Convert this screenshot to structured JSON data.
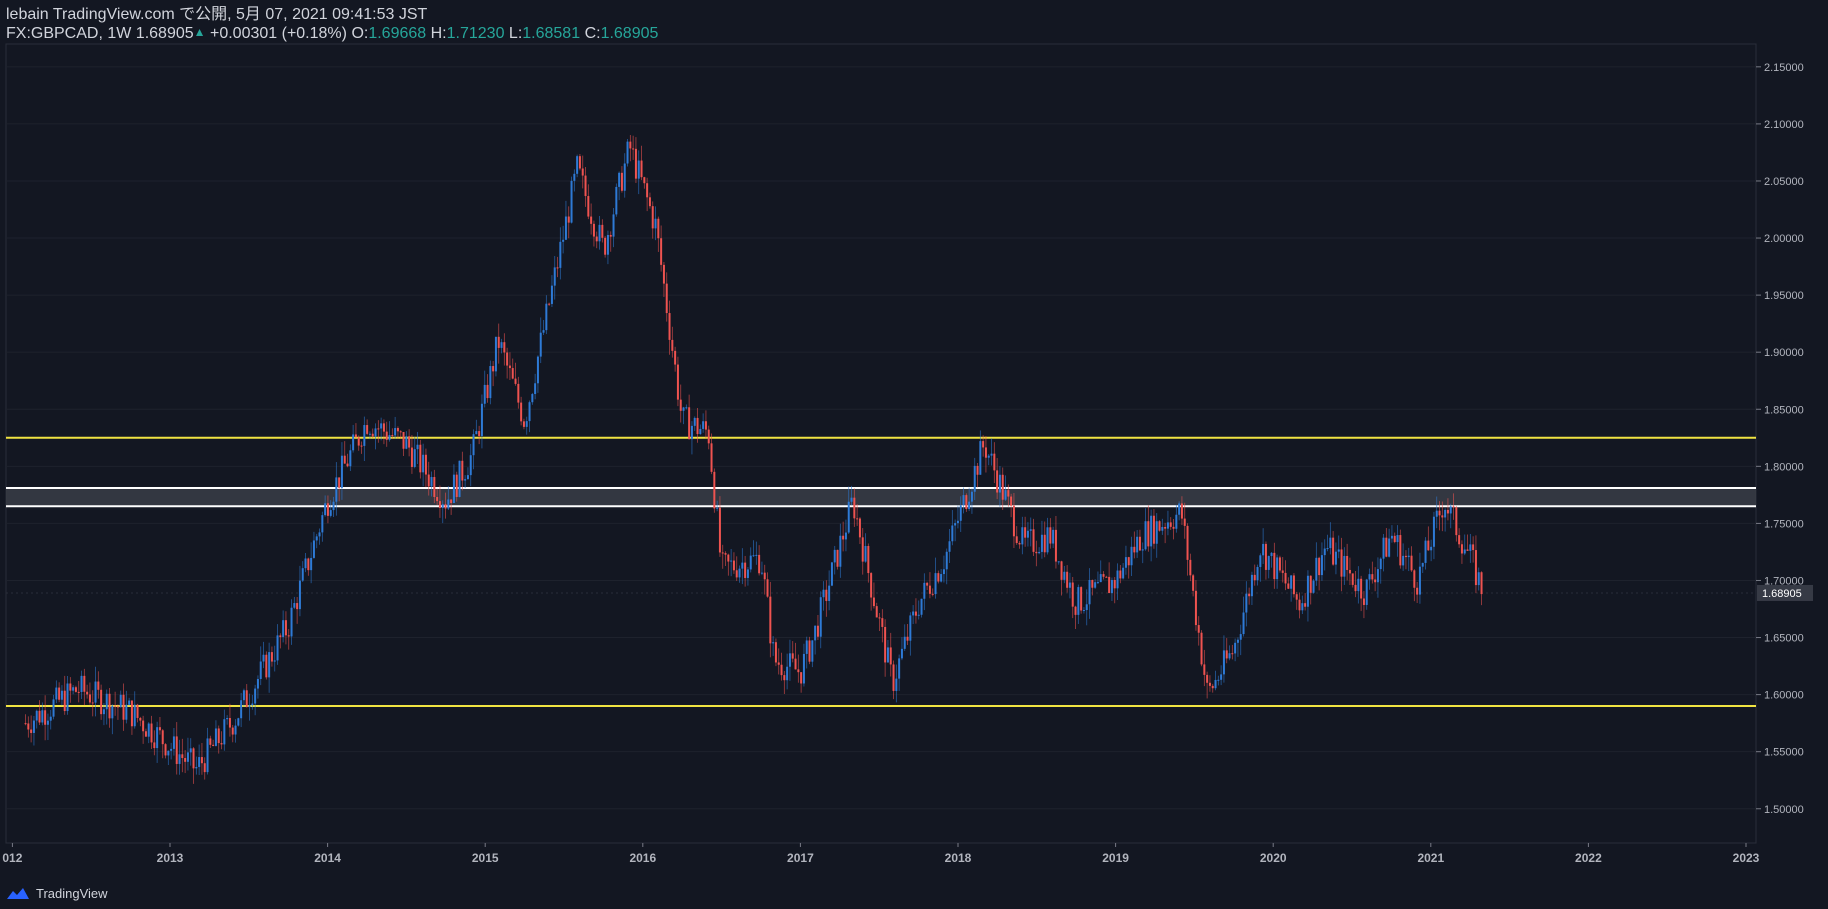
{
  "header": {
    "publisher_line": "lebain TradingView.com で公開, 5月 07, 2021 09:41:53 JST",
    "symbol": "FX:GBPCAD, 1W 1.68905",
    "change": "+0.00301 (+0.18%)",
    "o_label": "O:",
    "o_value": "1.69668",
    "h_label": "H:",
    "h_value": "1.71230",
    "l_label": "L:",
    "l_value": "1.68581",
    "c_label": "C:",
    "c_value": "1.68905"
  },
  "footer": {
    "brand": "TradingView"
  },
  "colors": {
    "background": "#131722",
    "up": "#2e7ad6",
    "down": "#ef5350",
    "support_resistance": "#f0e442",
    "zone_border": "#ffffff",
    "zone_fill": "#3a3d46",
    "axis_text": "#b2b5be",
    "grid": "#1e222d"
  },
  "chart_data": {
    "type": "line",
    "series": [
      {
        "name": "",
        "x": [
          "2012-02",
          "2012-06",
          "2012-10",
          "2013-03",
          "2013-06",
          "2013-10",
          "2014-01",
          "2014-04",
          "2014-07",
          "2014-10",
          "2014-12",
          "2015-02",
          "2015-04",
          "2015-08",
          "2015-10",
          "2015-12",
          "2016-02",
          "2016-04",
          "2016-06",
          "2016-07",
          "2016-10",
          "2016-11",
          "2017-01",
          "2017-02",
          "2017-05",
          "2017-08",
          "2017-10",
          "2017-12",
          "2018-03",
          "2018-06",
          "2018-08",
          "2018-10",
          "2019-01",
          "2019-03",
          "2019-06",
          "2019-08",
          "2019-10",
          "2019-12",
          "2020-03",
          "2020-05",
          "2020-08",
          "2020-10",
          "2020-12",
          "2021-02",
          "2021-04",
          "2021-05"
        ],
        "values": [
          1.575,
          1.605,
          1.585,
          1.535,
          1.58,
          1.66,
          1.77,
          1.84,
          1.82,
          1.77,
          1.81,
          1.91,
          1.84,
          2.06,
          1.99,
          2.08,
          2.01,
          1.84,
          1.83,
          1.71,
          1.72,
          1.63,
          1.62,
          1.65,
          1.77,
          1.61,
          1.68,
          1.72,
          1.82,
          1.73,
          1.74,
          1.68,
          1.7,
          1.74,
          1.76,
          1.6,
          1.64,
          1.73,
          1.68,
          1.73,
          1.69,
          1.74,
          1.7,
          1.77,
          1.72,
          1.689
        ]
      }
    ],
    "horizontal_lines": [
      1.825,
      1.59
    ],
    "zone": [
      1.765,
      1.781
    ],
    "last_price": 1.68905,
    "y_ticks": [
      "1.50000",
      "1.55000",
      "1.60000",
      "1.65000",
      "1.70000",
      "1.75000",
      "1.80000",
      "1.85000",
      "1.90000",
      "1.95000",
      "2.00000",
      "2.05000",
      "2.10000",
      "2.15000"
    ],
    "x_ticks": [
      "012",
      "2013",
      "2014",
      "2015",
      "2016",
      "2017",
      "2018",
      "2019",
      "2020",
      "2021",
      "2022",
      "2023"
    ],
    "ylim": [
      1.47,
      2.17
    ]
  }
}
